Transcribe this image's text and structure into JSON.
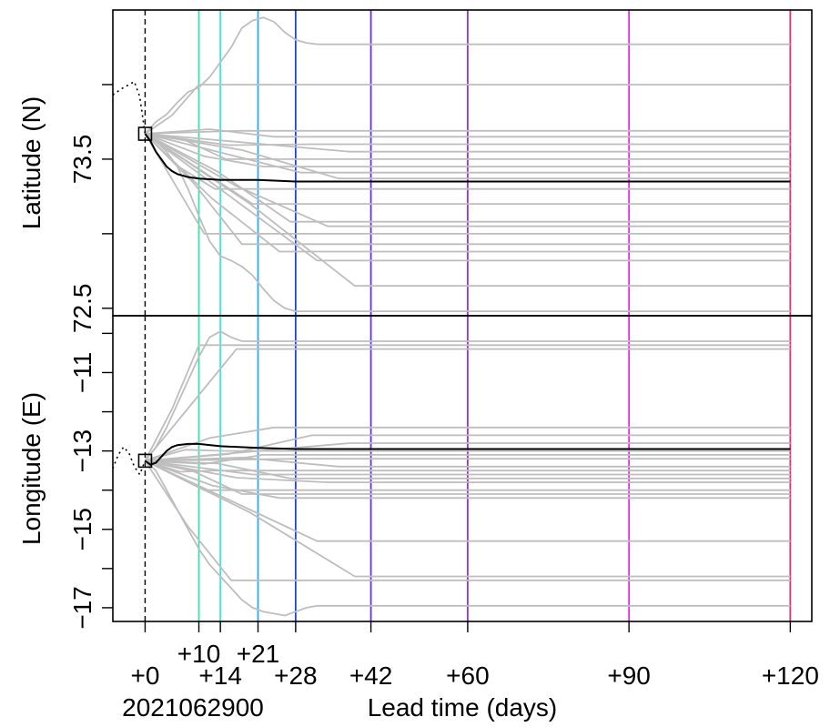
{
  "chart_data": {
    "type": "line",
    "init_label": "2021062900",
    "xlabel": "Lead time (days)",
    "xlim": [
      -6,
      124
    ],
    "lead_times": [
      0,
      10,
      14,
      21,
      28,
      42,
      60,
      90,
      120
    ],
    "lead_time_labels": [
      "+0",
      "+10",
      "+14",
      "+21",
      "+28",
      "+42",
      "+60",
      "+90",
      "+120"
    ],
    "lead_time_colors": [
      "#000000",
      "#2ee8a0",
      "#36e8e8",
      "#2fa8f0",
      "#2040e0",
      "#6a30e0",
      "#a030e0",
      "#e830e0",
      "#f0286e"
    ],
    "colors": {
      "ensemble": "#bebebe",
      "mean": "#000000",
      "history": "#000000"
    },
    "panels": [
      {
        "id": "latitude",
        "ylabel": "Latitude (N)",
        "ylim": [
          72.45,
          74.5
        ],
        "yticks": [
          72.5,
          73.5
        ],
        "ytick_labels": [
          "72.5",
          "73.5"
        ],
        "minor_yticks": [
          73.0,
          74.0
        ],
        "history": {
          "x": [
            -6,
            -4.5,
            -3,
            -2,
            -1,
            0
          ],
          "y": [
            73.93,
            73.97,
            74.0,
            74.02,
            73.92,
            73.67
          ]
        },
        "initial_point": {
          "x": 0,
          "y": 73.67
        },
        "members": [
          {
            "x": [
              0,
              2,
              4,
              6,
              8,
              10,
              12,
              14,
              16,
              18,
              20,
              22,
              24,
              26,
              28,
              30,
              32,
              34
            ],
            "y": [
              73.67,
              73.75,
              73.8,
              73.88,
              73.95,
              73.98,
              74.05,
              74.15,
              74.25,
              74.38,
              74.43,
              74.45,
              74.42,
              74.35,
              74.3,
              74.28,
              74.27,
              74.27
            ]
          },
          {
            "x": [
              0,
              2,
              4,
              6,
              8,
              10,
              12,
              14,
              16,
              18,
              20,
              22,
              24,
              26,
              28,
              30
            ],
            "y": [
              73.67,
              73.62,
              73.55,
              73.45,
              73.3,
              73.12,
              72.95,
              72.85,
              72.82,
              72.78,
              72.72,
              72.63,
              72.55,
              72.5,
              72.48,
              72.48
            ]
          },
          {
            "y": [
              74.0,
              73.69,
              73.65,
              73.6,
              73.55,
              73.5,
              73.45,
              73.41,
              73.37,
              73.3,
              73.2,
              73.08,
              73.05,
              73.0,
              72.93,
              72.88,
              72.82,
              72.65
            ]
          }
        ],
        "mean": {
          "x": [
            0,
            1,
            2,
            3,
            4,
            5,
            6,
            8,
            10,
            14,
            21,
            28,
            120
          ],
          "y": [
            73.67,
            73.62,
            73.55,
            73.5,
            73.45,
            73.42,
            73.4,
            73.38,
            73.37,
            73.36,
            73.36,
            73.35,
            73.35
          ]
        }
      },
      {
        "id": "longitude",
        "ylabel": "Longitude (E)",
        "ylim": [
          -17.35,
          -9.55
        ],
        "yticks": [
          -17,
          -15,
          -13,
          -11
        ],
        "ytick_labels": [
          "−17",
          "−15",
          "−13",
          "−11"
        ],
        "minor_yticks": [
          -16,
          -14,
          -12,
          -10
        ],
        "history": {
          "x": [
            -6,
            -5,
            -4,
            -3,
            -2,
            -1,
            0
          ],
          "y": [
            -13.45,
            -13.1,
            -12.9,
            -13.05,
            -13.4,
            -13.6,
            -13.25
          ]
        },
        "initial_point": {
          "x": 0,
          "y": -13.25
        },
        "members": [
          {
            "x": [
              0,
              2,
              4,
              6,
              8,
              10,
              12,
              14,
              16,
              18,
              20
            ],
            "y": [
              -13.25,
              -12.9,
              -12.4,
              -11.8,
              -11.2,
              -10.6,
              -10.1,
              -9.95,
              -10.1,
              -10.2,
              -10.2
            ]
          },
          {
            "x": [
              0,
              2,
              4,
              6,
              8,
              10,
              12,
              14,
              16,
              18,
              20,
              22,
              24,
              26,
              28,
              30,
              32,
              34
            ],
            "y": [
              -13.25,
              -13.5,
              -14.0,
              -14.5,
              -15.0,
              -15.5,
              -15.9,
              -16.2,
              -16.5,
              -16.8,
              -17.0,
              -17.1,
              -17.15,
              -17.2,
              -17.1,
              -17.0,
              -16.95,
              -16.95
            ]
          },
          {
            "y": [
              -10.3,
              -10.4,
              -12.4,
              -12.6,
              -12.8,
              -13.0,
              -13.1,
              -13.2,
              -13.4,
              -13.5,
              -13.6,
              -13.7,
              -13.8,
              -14.0,
              -14.1,
              -14.2,
              -15.3,
              -16.2,
              -16.3
            ]
          }
        ],
        "mean": {
          "x": [
            0,
            1,
            2,
            3,
            4,
            5,
            6,
            8,
            10,
            14,
            21,
            28,
            120
          ],
          "y": [
            -13.25,
            -13.35,
            -13.3,
            -13.15,
            -13.0,
            -12.9,
            -12.85,
            -12.82,
            -12.82,
            -12.88,
            -12.92,
            -12.95,
            -12.95
          ]
        }
      }
    ]
  }
}
